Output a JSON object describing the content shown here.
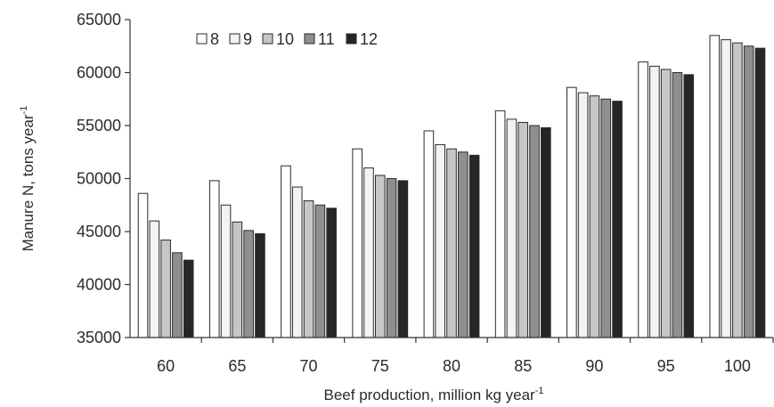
{
  "chart_data": {
    "type": "bar",
    "title": "",
    "xlabel": "Beef production, million kg year",
    "xlabel_superscript": "-1",
    "ylabel": "Manure N, tons year",
    "ylabel_superscript": "-1",
    "ylim": [
      35000,
      65000
    ],
    "yticks": [
      "35000",
      "40000",
      "45000",
      "50000",
      "55000",
      "60000",
      "65000"
    ],
    "categories": [
      "60",
      "65",
      "70",
      "75",
      "80",
      "85",
      "90",
      "95",
      "100"
    ],
    "grid": false,
    "legend_position": "top-left",
    "series": [
      {
        "name": "8",
        "color": "#ffffff",
        "values": [
          48600,
          49800,
          51200,
          52800,
          54500,
          56400,
          58600,
          61000,
          63500
        ]
      },
      {
        "name": "9",
        "color": "#f3f3f3",
        "values": [
          46000,
          47500,
          49200,
          51000,
          53200,
          55600,
          58100,
          60600,
          63100
        ]
      },
      {
        "name": "10",
        "color": "#c6c6c6",
        "values": [
          44200,
          45900,
          47900,
          50300,
          52800,
          55300,
          57800,
          60300,
          62800
        ]
      },
      {
        "name": "11",
        "color": "#8f8f8f",
        "values": [
          43000,
          45100,
          47500,
          50000,
          52500,
          55000,
          57500,
          60000,
          62500
        ]
      },
      {
        "name": "12",
        "color": "#262626",
        "values": [
          42300,
          44800,
          47200,
          49800,
          52200,
          54800,
          57300,
          59800,
          62300
        ]
      }
    ]
  }
}
